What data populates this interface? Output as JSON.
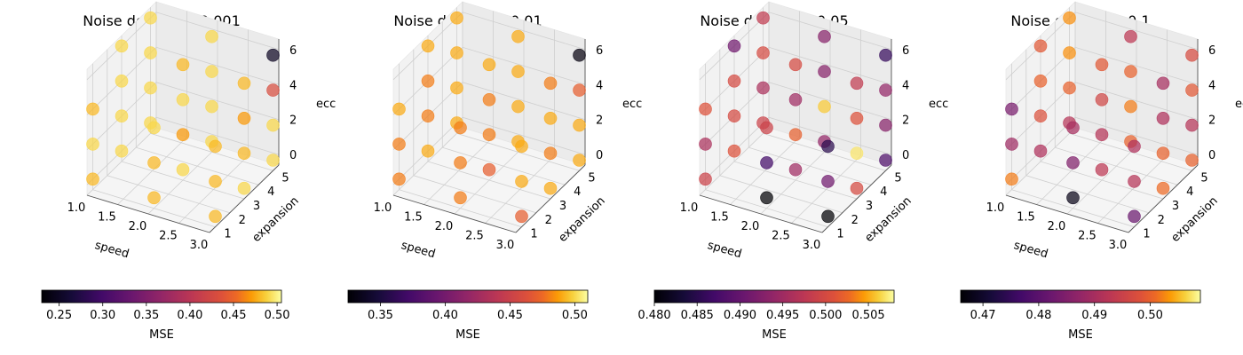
{
  "chart_data": [
    {
      "type": "scatter3d",
      "title": "Noise density = 0.001",
      "xlabel": "speed",
      "ylabel": "expansion",
      "zlabel": "ecc",
      "xticks": [
        "1.0",
        "1.5",
        "2.0",
        "2.5",
        "3.0"
      ],
      "yticks": [
        "1",
        "2",
        "3",
        "4",
        "5"
      ],
      "zticks": [
        "0",
        "2",
        "4",
        "6"
      ],
      "colorbar": {
        "label": "MSE",
        "cmap": "inferno",
        "min": 0.23,
        "max": 0.505,
        "ticks": [
          "0.25",
          "0.30",
          "0.35",
          "0.40",
          "0.45",
          "0.50"
        ],
        "tick_values": [
          0.25,
          0.3,
          0.35,
          0.4,
          0.45,
          0.5
        ]
      },
      "points": [
        {
          "x": 1.0,
          "y": 5,
          "z": 6,
          "v": 0.49
        },
        {
          "x": 1.0,
          "y": 5,
          "z": 4,
          "v": 0.49
        },
        {
          "x": 1.0,
          "y": 5,
          "z": 2,
          "v": 0.49
        },
        {
          "x": 1.0,
          "y": 5,
          "z": 0,
          "v": 0.49
        },
        {
          "x": 1.0,
          "y": 3,
          "z": 6,
          "v": 0.49
        },
        {
          "x": 1.0,
          "y": 3,
          "z": 4,
          "v": 0.49
        },
        {
          "x": 1.0,
          "y": 3,
          "z": 2,
          "v": 0.49
        },
        {
          "x": 1.0,
          "y": 3,
          "z": 0,
          "v": 0.49
        },
        {
          "x": 1.0,
          "y": 1,
          "z": 4,
          "v": 0.48
        },
        {
          "x": 1.0,
          "y": 1,
          "z": 2,
          "v": 0.49
        },
        {
          "x": 1.0,
          "y": 1,
          "z": 0,
          "v": 0.48
        },
        {
          "x": 2.0,
          "y": 5,
          "z": 6,
          "v": 0.49
        },
        {
          "x": 2.0,
          "y": 5,
          "z": 4,
          "v": 0.49
        },
        {
          "x": 2.0,
          "y": 5,
          "z": 2,
          "v": 0.49
        },
        {
          "x": 2.0,
          "y": 5,
          "z": 0,
          "v": 0.49
        },
        {
          "x": 2.0,
          "y": 3,
          "z": 6,
          "v": 0.48
        },
        {
          "x": 2.0,
          "y": 3,
          "z": 4,
          "v": 0.49
        },
        {
          "x": 2.0,
          "y": 3,
          "z": 2,
          "v": 0.47
        },
        {
          "x": 2.0,
          "y": 3,
          "z": 0,
          "v": 0.49
        },
        {
          "x": 2.0,
          "y": 1,
          "z": 4,
          "v": 0.49
        },
        {
          "x": 2.0,
          "y": 1,
          "z": 2,
          "v": 0.48
        },
        {
          "x": 2.0,
          "y": 1,
          "z": 0,
          "v": 0.48
        },
        {
          "x": 3.0,
          "y": 5,
          "z": 6,
          "v": 0.25
        },
        {
          "x": 3.0,
          "y": 5,
          "z": 4,
          "v": 0.43
        },
        {
          "x": 3.0,
          "y": 5,
          "z": 2,
          "v": 0.49
        },
        {
          "x": 3.0,
          "y": 5,
          "z": 0,
          "v": 0.49
        },
        {
          "x": 3.0,
          "y": 3,
          "z": 6,
          "v": 0.48
        },
        {
          "x": 3.0,
          "y": 3,
          "z": 4,
          "v": 0.47
        },
        {
          "x": 3.0,
          "y": 3,
          "z": 2,
          "v": 0.48
        },
        {
          "x": 3.0,
          "y": 3,
          "z": 0,
          "v": 0.49
        },
        {
          "x": 3.0,
          "y": 1,
          "z": 4,
          "v": 0.48
        },
        {
          "x": 3.0,
          "y": 1,
          "z": 2,
          "v": 0.48
        },
        {
          "x": 3.0,
          "y": 1,
          "z": 0,
          "v": 0.48
        }
      ]
    },
    {
      "type": "scatter3d",
      "title": "Noise density = 0.01",
      "xlabel": "speed",
      "ylabel": "expansion",
      "zlabel": "ecc",
      "xticks": [
        "1.0",
        "1.5",
        "2.0",
        "2.5",
        "3.0"
      ],
      "yticks": [
        "1",
        "2",
        "3",
        "4",
        "5"
      ],
      "zticks": [
        "0",
        "2",
        "4",
        "6"
      ],
      "colorbar": {
        "label": "MSE",
        "cmap": "inferno",
        "min": 0.325,
        "max": 0.51,
        "ticks": [
          "0.35",
          "0.40",
          "0.45",
          "0.50"
        ],
        "tick_values": [
          0.35,
          0.4,
          0.45,
          0.5
        ]
      },
      "points": [
        {
          "x": 1.0,
          "y": 5,
          "z": 6,
          "v": 0.49
        },
        {
          "x": 1.0,
          "y": 5,
          "z": 4,
          "v": 0.49
        },
        {
          "x": 1.0,
          "y": 5,
          "z": 2,
          "v": 0.49
        },
        {
          "x": 1.0,
          "y": 5,
          "z": 0,
          "v": 0.49
        },
        {
          "x": 1.0,
          "y": 3,
          "z": 6,
          "v": 0.49
        },
        {
          "x": 1.0,
          "y": 3,
          "z": 4,
          "v": 0.48
        },
        {
          "x": 1.0,
          "y": 3,
          "z": 2,
          "v": 0.48
        },
        {
          "x": 1.0,
          "y": 3,
          "z": 0,
          "v": 0.49
        },
        {
          "x": 1.0,
          "y": 1,
          "z": 4,
          "v": 0.49
        },
        {
          "x": 1.0,
          "y": 1,
          "z": 2,
          "v": 0.48
        },
        {
          "x": 1.0,
          "y": 1,
          "z": 0,
          "v": 0.48
        },
        {
          "x": 2.0,
          "y": 5,
          "z": 6,
          "v": 0.49
        },
        {
          "x": 2.0,
          "y": 5,
          "z": 4,
          "v": 0.49
        },
        {
          "x": 2.0,
          "y": 5,
          "z": 2,
          "v": 0.49
        },
        {
          "x": 2.0,
          "y": 5,
          "z": 0,
          "v": 0.49
        },
        {
          "x": 2.0,
          "y": 3,
          "z": 6,
          "v": 0.49
        },
        {
          "x": 2.0,
          "y": 3,
          "z": 4,
          "v": 0.48
        },
        {
          "x": 2.0,
          "y": 3,
          "z": 2,
          "v": 0.48
        },
        {
          "x": 2.0,
          "y": 3,
          "z": 0,
          "v": 0.47
        },
        {
          "x": 2.0,
          "y": 1,
          "z": 4,
          "v": 0.48
        },
        {
          "x": 2.0,
          "y": 1,
          "z": 2,
          "v": 0.48
        },
        {
          "x": 2.0,
          "y": 1,
          "z": 0,
          "v": 0.48
        },
        {
          "x": 3.0,
          "y": 5,
          "z": 6,
          "v": 0.33
        },
        {
          "x": 3.0,
          "y": 5,
          "z": 4,
          "v": 0.47
        },
        {
          "x": 3.0,
          "y": 5,
          "z": 2,
          "v": 0.49
        },
        {
          "x": 3.0,
          "y": 5,
          "z": 0,
          "v": 0.49
        },
        {
          "x": 3.0,
          "y": 3,
          "z": 6,
          "v": 0.48
        },
        {
          "x": 3.0,
          "y": 3,
          "z": 4,
          "v": 0.49
        },
        {
          "x": 3.0,
          "y": 3,
          "z": 2,
          "v": 0.48
        },
        {
          "x": 3.0,
          "y": 3,
          "z": 0,
          "v": 0.49
        },
        {
          "x": 3.0,
          "y": 1,
          "z": 4,
          "v": 0.49
        },
        {
          "x": 3.0,
          "y": 1,
          "z": 2,
          "v": 0.49
        },
        {
          "x": 3.0,
          "y": 1,
          "z": 0,
          "v": 0.47
        }
      ]
    },
    {
      "type": "scatter3d",
      "title": "Noise density = 0.05",
      "xlabel": "speed",
      "ylabel": "expansion",
      "zlabel": "ecc",
      "xticks": [
        "1.0",
        "1.5",
        "2.0",
        "2.5",
        "3.0"
      ],
      "yticks": [
        "1",
        "2",
        "3",
        "4",
        "5"
      ],
      "zticks": [
        "0",
        "2",
        "4",
        "6"
      ],
      "colorbar": {
        "label": "MSE",
        "cmap": "inferno",
        "min": 0.48,
        "max": 0.508,
        "ticks": [
          "0.480",
          "0.485",
          "0.490",
          "0.495",
          "0.500",
          "0.505"
        ],
        "tick_values": [
          0.48,
          0.485,
          0.49,
          0.495,
          0.5,
          0.505
        ]
      },
      "points": [
        {
          "x": 1.0,
          "y": 5,
          "z": 6,
          "v": 0.498
        },
        {
          "x": 1.0,
          "y": 5,
          "z": 4,
          "v": 0.5
        },
        {
          "x": 1.0,
          "y": 5,
          "z": 2,
          "v": 0.496
        },
        {
          "x": 1.0,
          "y": 5,
          "z": 0,
          "v": 0.499
        },
        {
          "x": 1.0,
          "y": 3,
          "z": 6,
          "v": 0.491
        },
        {
          "x": 1.0,
          "y": 3,
          "z": 4,
          "v": 0.5
        },
        {
          "x": 1.0,
          "y": 3,
          "z": 2,
          "v": 0.5
        },
        {
          "x": 1.0,
          "y": 3,
          "z": 0,
          "v": 0.501
        },
        {
          "x": 1.0,
          "y": 1,
          "z": 4,
          "v": 0.501
        },
        {
          "x": 1.0,
          "y": 1,
          "z": 2,
          "v": 0.496
        },
        {
          "x": 1.0,
          "y": 1,
          "z": 0,
          "v": 0.499
        },
        {
          "x": 2.0,
          "y": 5,
          "z": 6,
          "v": 0.493
        },
        {
          "x": 2.0,
          "y": 5,
          "z": 4,
          "v": 0.493
        },
        {
          "x": 2.0,
          "y": 5,
          "z": 2,
          "v": 0.506
        },
        {
          "x": 2.0,
          "y": 5,
          "z": 0,
          "v": 0.494
        },
        {
          "x": 2.0,
          "y": 3,
          "z": 6,
          "v": 0.5
        },
        {
          "x": 2.0,
          "y": 3,
          "z": 4,
          "v": 0.495
        },
        {
          "x": 2.0,
          "y": 3,
          "z": 2,
          "v": 0.502
        },
        {
          "x": 2.0,
          "y": 3,
          "z": 0,
          "v": 0.495
        },
        {
          "x": 2.0,
          "y": 1,
          "z": 4,
          "v": 0.499
        },
        {
          "x": 2.0,
          "y": 1,
          "z": 2,
          "v": 0.487
        },
        {
          "x": 2.0,
          "y": 1,
          "z": 0,
          "v": 0.48
        },
        {
          "x": 3.0,
          "y": 5,
          "z": 6,
          "v": 0.486
        },
        {
          "x": 3.0,
          "y": 5,
          "z": 4,
          "v": 0.494
        },
        {
          "x": 3.0,
          "y": 5,
          "z": 2,
          "v": 0.493
        },
        {
          "x": 3.0,
          "y": 5,
          "z": 0,
          "v": 0.488
        },
        {
          "x": 3.0,
          "y": 3,
          "z": 6,
          "v": 0.498
        },
        {
          "x": 3.0,
          "y": 3,
          "z": 4,
          "v": 0.501
        },
        {
          "x": 3.0,
          "y": 3,
          "z": 2,
          "v": 0.507
        },
        {
          "x": 3.0,
          "y": 3,
          "z": 0,
          "v": 0.5
        },
        {
          "x": 3.0,
          "y": 1,
          "z": 4,
          "v": 0.485
        },
        {
          "x": 3.0,
          "y": 1,
          "z": 2,
          "v": 0.491
        },
        {
          "x": 3.0,
          "y": 1,
          "z": 0,
          "v": 0.48
        }
      ]
    },
    {
      "type": "scatter3d",
      "title": "Noise density = 0.1",
      "xlabel": "speed",
      "ylabel": "expansion",
      "zlabel": "ecc",
      "xticks": [
        "1.0",
        "1.5",
        "2.0",
        "2.5",
        "3.0"
      ],
      "yticks": [
        "1",
        "2",
        "3",
        "4",
        "5"
      ],
      "zticks": [
        "0",
        "2",
        "4",
        "6"
      ],
      "colorbar": {
        "label": "MSE",
        "cmap": "inferno",
        "min": 0.466,
        "max": 0.509,
        "ticks": [
          "0.47",
          "0.48",
          "0.49",
          "0.50"
        ],
        "tick_values": [
          0.47,
          0.48,
          0.49,
          0.5
        ]
      },
      "points": [
        {
          "x": 1.0,
          "y": 5,
          "z": 6,
          "v": 0.503
        },
        {
          "x": 1.0,
          "y": 5,
          "z": 4,
          "v": 0.503
        },
        {
          "x": 1.0,
          "y": 5,
          "z": 2,
          "v": 0.5
        },
        {
          "x": 1.0,
          "y": 5,
          "z": 0,
          "v": 0.492
        },
        {
          "x": 1.0,
          "y": 3,
          "z": 6,
          "v": 0.499
        },
        {
          "x": 1.0,
          "y": 3,
          "z": 4,
          "v": 0.5
        },
        {
          "x": 1.0,
          "y": 3,
          "z": 2,
          "v": 0.498
        },
        {
          "x": 1.0,
          "y": 3,
          "z": 0,
          "v": 0.491
        },
        {
          "x": 1.0,
          "y": 1,
          "z": 4,
          "v": 0.484
        },
        {
          "x": 1.0,
          "y": 1,
          "z": 2,
          "v": 0.489
        },
        {
          "x": 1.0,
          "y": 1,
          "z": 0,
          "v": 0.502
        },
        {
          "x": 2.0,
          "y": 5,
          "z": 6,
          "v": 0.493
        },
        {
          "x": 2.0,
          "y": 5,
          "z": 4,
          "v": 0.5
        },
        {
          "x": 2.0,
          "y": 5,
          "z": 2,
          "v": 0.502
        },
        {
          "x": 2.0,
          "y": 5,
          "z": 0,
          "v": 0.5
        },
        {
          "x": 2.0,
          "y": 3,
          "z": 6,
          "v": 0.499
        },
        {
          "x": 2.0,
          "y": 3,
          "z": 4,
          "v": 0.496
        },
        {
          "x": 2.0,
          "y": 3,
          "z": 2,
          "v": 0.492
        },
        {
          "x": 2.0,
          "y": 3,
          "z": 0,
          "v": 0.493
        },
        {
          "x": 2.0,
          "y": 1,
          "z": 4,
          "v": 0.49
        },
        {
          "x": 2.0,
          "y": 1,
          "z": 2,
          "v": 0.485
        },
        {
          "x": 2.0,
          "y": 1,
          "z": 0,
          "v": 0.468
        },
        {
          "x": 3.0,
          "y": 5,
          "z": 6,
          "v": 0.497
        },
        {
          "x": 3.0,
          "y": 5,
          "z": 4,
          "v": 0.499
        },
        {
          "x": 3.0,
          "y": 5,
          "z": 2,
          "v": 0.492
        },
        {
          "x": 3.0,
          "y": 5,
          "z": 0,
          "v": 0.5
        },
        {
          "x": 3.0,
          "y": 3,
          "z": 6,
          "v": 0.49
        },
        {
          "x": 3.0,
          "y": 3,
          "z": 4,
          "v": 0.491
        },
        {
          "x": 3.0,
          "y": 3,
          "z": 2,
          "v": 0.5
        },
        {
          "x": 3.0,
          "y": 3,
          "z": 0,
          "v": 0.501
        },
        {
          "x": 3.0,
          "y": 1,
          "z": 4,
          "v": 0.491
        },
        {
          "x": 3.0,
          "y": 1,
          "z": 2,
          "v": 0.492
        },
        {
          "x": 3.0,
          "y": 1,
          "z": 0,
          "v": 0.482
        }
      ]
    }
  ]
}
